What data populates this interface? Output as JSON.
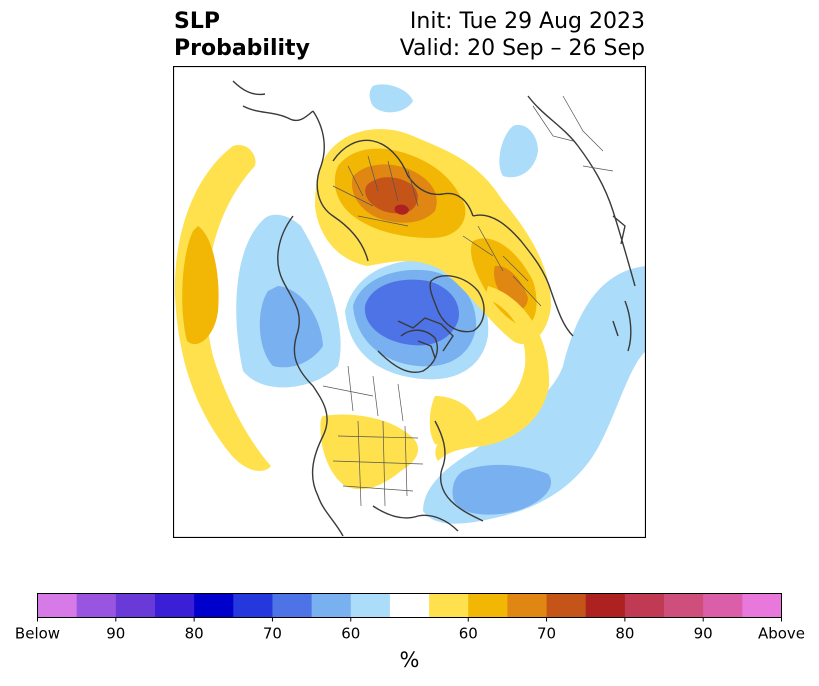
{
  "title": {
    "line1": "SLP",
    "line2": "Probability",
    "init": "Init: Tue 29 Aug 2023",
    "valid": "Valid: 20 Sep – 26 Sep"
  },
  "map": {
    "projection": "north-polar-stereographic",
    "features": [
      {
        "name": "below-anomaly-north-canada-greenland",
        "category": "below",
        "max_level": "70"
      },
      {
        "name": "below-anomaly-north-pacific",
        "category": "below",
        "max_level": "60"
      },
      {
        "name": "below-anomaly-north-atlantic",
        "category": "below",
        "max_level": "60"
      },
      {
        "name": "below-anomaly-siberia",
        "category": "below",
        "max_level": "50"
      },
      {
        "name": "above-anomaly-northern-europe",
        "category": "above",
        "max_level": "80"
      },
      {
        "name": "above-anomaly-eastern-siberia",
        "category": "above",
        "max_level": "60"
      },
      {
        "name": "above-anomaly-central-us",
        "category": "above",
        "max_level": "50"
      },
      {
        "name": "above-anomaly-west-pacific-edge",
        "category": "above",
        "max_level": "50"
      }
    ]
  },
  "colorbar": {
    "colors": [
      "#d67ae8",
      "#9a55e0",
      "#6a3ad8",
      "#3a1fd6",
      "#0000cc",
      "#2438dd",
      "#4d73e6",
      "#78b0f0",
      "#abdcfa",
      "#ffffff",
      "#ffe14d",
      "#f2b705",
      "#df8712",
      "#c55419",
      "#ae2121",
      "#c03a54",
      "#ce4e7c",
      "#db5fa8",
      "#e878dc"
    ],
    "tick_labels_left": [
      "Below",
      "90",
      "80",
      "70",
      "60"
    ],
    "tick_labels_right": [
      "60",
      "70",
      "80",
      "90",
      "Above"
    ],
    "units": "%"
  }
}
